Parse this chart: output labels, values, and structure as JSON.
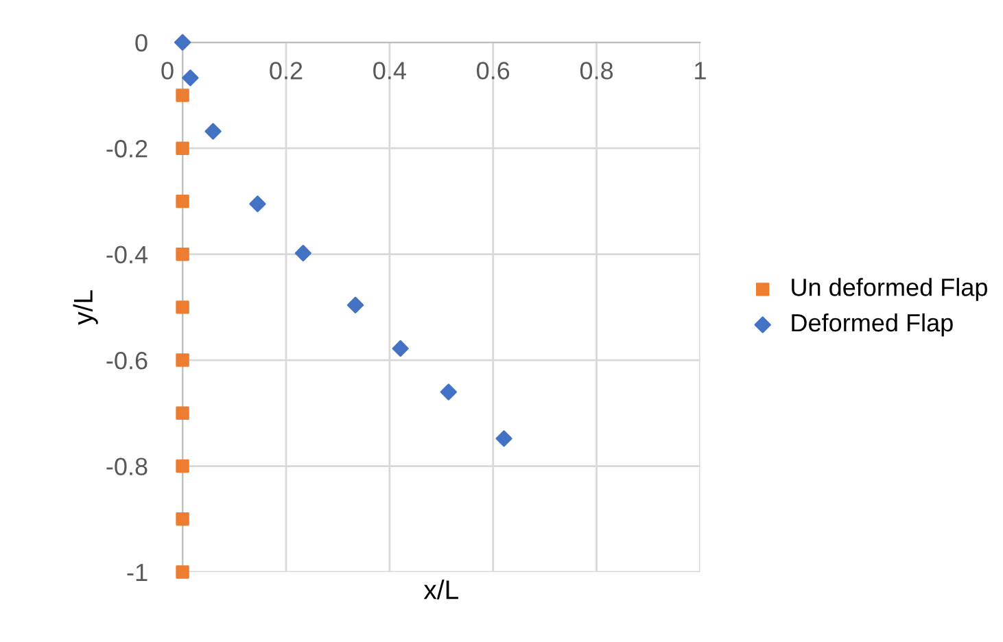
{
  "chart_data": {
    "type": "scatter",
    "xlabel": "x/L",
    "ylabel": "y/L",
    "xlim": [
      0,
      1
    ],
    "xticks": [
      0,
      0.2,
      0.4,
      0.6,
      0.8,
      1
    ],
    "ylim": [
      -1,
      0
    ],
    "yticks": [
      -1,
      -0.8,
      -0.6,
      -0.4,
      -0.2,
      0
    ],
    "grid": true,
    "legend": "right",
    "series": [
      {
        "name": "Un deformed Flap",
        "color": "#ed7d31",
        "marker": "square",
        "x": [
          0,
          0,
          0,
          0,
          0,
          0,
          0,
          0,
          0,
          0
        ],
        "values": [
          -0.1,
          -0.2,
          -0.3,
          -0.4,
          -0.5,
          -0.6,
          -0.7,
          -0.8,
          -0.9,
          -1
        ]
      },
      {
        "name": "Deformed Flap",
        "color": "#4472c4",
        "marker": "diamond",
        "x": [
          0,
          0.015,
          0.059,
          0.145,
          0.233,
          0.334,
          0.421,
          0.514,
          0.621
        ],
        "values": [
          0,
          -0.067,
          -0.168,
          -0.305,
          -0.398,
          -0.496,
          -0.578,
          -0.66,
          -0.748
        ]
      }
    ]
  }
}
